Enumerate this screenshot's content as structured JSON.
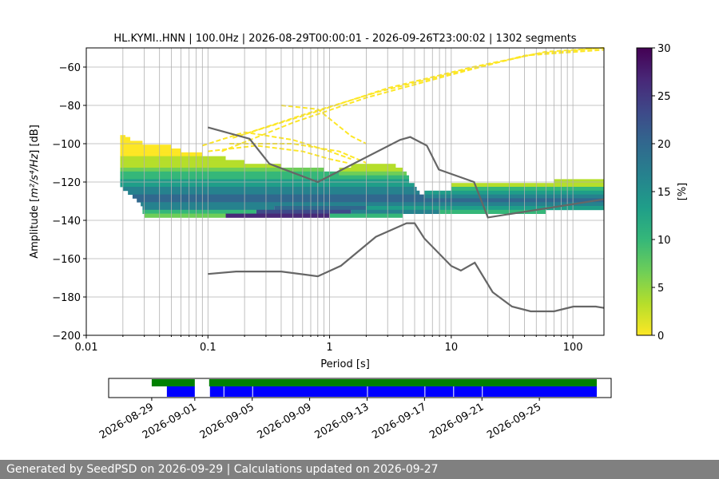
{
  "chart_data": [
    {
      "type": "heatmap",
      "title": "HL.KYMI..HNN | 100.0Hz | 2026-08-29T00:00:01 - 2026-09-26T23:00:02 | 1302 segments",
      "xlabel": "Period [s]",
      "ylabel_prefix": "Amplitude [",
      "ylabel_math": "m²/s⁴/Hz",
      "ylabel_suffix": "] [dB]",
      "x_scale": "log",
      "xlim": [
        0.01,
        180
      ],
      "ylim": [
        -200,
        -50
      ],
      "x_ticks": [
        {
          "value": 0.01,
          "label": "0.01"
        },
        {
          "value": 0.1,
          "label": "0.1"
        },
        {
          "value": 1,
          "label": "1"
        },
        {
          "value": 10,
          "label": "10"
        },
        {
          "value": 100,
          "label": "100"
        }
      ],
      "y_ticks": [
        {
          "value": -60,
          "label": "−60"
        },
        {
          "value": -80,
          "label": "−80"
        },
        {
          "value": -100,
          "label": "−100"
        },
        {
          "value": -120,
          "label": "−120"
        },
        {
          "value": -140,
          "label": "−140"
        },
        {
          "value": -160,
          "label": "−160"
        },
        {
          "value": -180,
          "label": "−180"
        },
        {
          "value": -200,
          "label": "−200"
        }
      ],
      "grid": true,
      "colorbar": {
        "label": "[%]",
        "range": [
          0,
          30
        ],
        "ticks": [
          {
            "value": 0,
            "label": "0"
          },
          {
            "value": 5,
            "label": "5"
          },
          {
            "value": 10,
            "label": "10"
          },
          {
            "value": 15,
            "label": "15"
          },
          {
            "value": 20,
            "label": "20"
          },
          {
            "value": 25,
            "label": "25"
          },
          {
            "value": 30,
            "label": "30"
          }
        ],
        "colormap": [
          "#fde725",
          "#b5de2b",
          "#6ece58",
          "#35b779",
          "#1f9e89",
          "#26828e",
          "#31688e",
          "#3e4989",
          "#482878",
          "#440154"
        ]
      },
      "noise_models": [
        {
          "points": [
            [
              0.1,
              -91.5
            ],
            [
              0.22,
              -97.4
            ],
            [
              0.32,
              -110.5
            ],
            [
              0.8,
              -120
            ],
            [
              3.8,
              -98
            ],
            [
              4.6,
              -96.5
            ],
            [
              6.3,
              -101
            ],
            [
              7.9,
              -113.5
            ],
            [
              15.4,
              -120
            ],
            [
              20,
              -138.5
            ],
            [
              180,
              -129
            ]
          ],
          "color": "#666666"
        },
        {
          "points": [
            [
              0.1,
              -168
            ],
            [
              0.17,
              -166.7
            ],
            [
              0.4,
              -166.7
            ],
            [
              0.8,
              -169.2
            ],
            [
              1.24,
              -163.7
            ],
            [
              2.4,
              -148.6
            ],
            [
              4.3,
              -141.5
            ],
            [
              5.0,
              -141.5
            ],
            [
              6.0,
              -149.4
            ],
            [
              10,
              -163.8
            ],
            [
              12,
              -166.2
            ],
            [
              15.6,
              -162.1
            ],
            [
              21.9,
              -177.5
            ],
            [
              31.6,
              -185
            ],
            [
              45,
              -187.5
            ],
            [
              70,
              -187.5
            ],
            [
              101,
              -185
            ],
            [
              154,
              -185
            ],
            [
              180,
              -185.7
            ]
          ],
          "color": "#666666"
        }
      ],
      "psd_density": {
        "rows": [
          {
            "y": -96.5,
            "cells": [
              [
                0.019,
                0.021,
                0
              ]
            ]
          },
          {
            "y": -97.5,
            "cells": [
              [
                0.019,
                0.023,
                0
              ]
            ]
          },
          {
            "y": -99.5,
            "cells": [
              [
                0.019,
                0.029,
                0
              ]
            ]
          },
          {
            "y": -101.5,
            "cells": [
              [
                0.019,
                0.05,
                0
              ]
            ]
          },
          {
            "y": -103.5,
            "cells": [
              [
                0.019,
                0.06,
                0
              ]
            ]
          },
          {
            "y": -105.5,
            "cells": [
              [
                0.019,
                0.09,
                0
              ]
            ]
          },
          {
            "y": -107.5,
            "cells": [
              [
                0.019,
                0.14,
                1
              ]
            ]
          },
          {
            "y": -109.5,
            "cells": [
              [
                0.019,
                0.2,
                1
              ]
            ]
          },
          {
            "y": -111.5,
            "cells": [
              [
                0.019,
                0.4,
                1
              ],
              [
                1.5,
                3.5,
                1
              ]
            ]
          },
          {
            "y": -113.5,
            "cells": [
              [
                0.019,
                0.9,
                2
              ],
              [
                1.2,
                4.0,
                1
              ]
            ]
          },
          {
            "y": -115.5,
            "cells": [
              [
                0.019,
                1.2,
                3
              ],
              [
                1.2,
                4.3,
                2
              ]
            ]
          },
          {
            "y": -117.5,
            "cells": [
              [
                0.019,
                4.5,
                3
              ]
            ]
          },
          {
            "y": -119.5,
            "cells": [
              [
                0.019,
                4.5,
                4
              ],
              [
                70,
                180,
                1
              ]
            ]
          },
          {
            "y": -121.5,
            "cells": [
              [
                0.019,
                5.0,
                4
              ],
              [
                10,
                180,
                1
              ]
            ]
          },
          {
            "y": -123.5,
            "cells": [
              [
                0.02,
                5.2,
                5
              ],
              [
                10,
                180,
                3
              ]
            ]
          },
          {
            "y": -125.5,
            "cells": [
              [
                0.022,
                5.5,
                5
              ],
              [
                6,
                180,
                4
              ]
            ]
          },
          {
            "y": -127.5,
            "cells": [
              [
                0.024,
                6.0,
                6
              ],
              [
                6,
                180,
                5
              ]
            ]
          },
          {
            "y": -129.5,
            "cells": [
              [
                0.026,
                180,
                6
              ]
            ]
          },
          {
            "y": -131.5,
            "cells": [
              [
                0.028,
                180,
                5
              ]
            ]
          },
          {
            "y": -133.5,
            "cells": [
              [
                0.029,
                0.35,
                5
              ],
              [
                0.35,
                2.0,
                6
              ],
              [
                2.0,
                180,
                4
              ]
            ]
          },
          {
            "y": -135.5,
            "cells": [
              [
                0.029,
                0.25,
                3
              ],
              [
                0.25,
                1.5,
                7
              ],
              [
                1.5,
                8.0,
                5
              ],
              [
                8.0,
                60,
                3
              ]
            ]
          },
          {
            "y": -137.5,
            "cells": [
              [
                0.03,
                0.14,
                2
              ],
              [
                0.14,
                1.0,
                8
              ],
              [
                1.0,
                4.0,
                3
              ]
            ]
          }
        ]
      },
      "spurious_lines": [
        {
          "points": [
            [
              0.13,
              -104
            ],
            [
              0.5,
              -89
            ],
            [
              2.0,
              -76
            ],
            [
              10,
              -64
            ],
            [
              40,
              -54
            ],
            [
              180,
              -51
            ]
          ],
          "color": "#fde725"
        },
        {
          "points": [
            [
              0.16,
              -97
            ],
            [
              0.6,
              -85
            ],
            [
              2.5,
              -73
            ],
            [
              12,
              -62
            ],
            [
              50,
              -53
            ],
            [
              180,
              -50
            ]
          ],
          "color": "#fde725"
        },
        {
          "points": [
            [
              0.2,
              -95
            ],
            [
              0.8,
              -83
            ],
            [
              3.0,
              -71
            ],
            [
              15,
              -60
            ],
            [
              60,
              -52
            ],
            [
              180,
              -50
            ]
          ],
          "color": "#fde725"
        },
        {
          "points": [
            [
              0.1,
              -104
            ],
            [
              0.25,
              -101
            ],
            [
              0.6,
              -104
            ],
            [
              1.0,
              -108
            ],
            [
              1.4,
              -110
            ]
          ],
          "color": "#fde725"
        },
        {
          "points": [
            [
              0.09,
              -101
            ],
            [
              0.2,
              -94
            ],
            [
              0.5,
              -98
            ],
            [
              1.0,
              -104
            ],
            [
              1.5,
              -108
            ]
          ],
          "color": "#fde725"
        },
        {
          "points": [
            [
              0.4,
              -80
            ],
            [
              0.8,
              -82
            ],
            [
              1.5,
              -96
            ],
            [
              2.0,
              -100
            ]
          ],
          "color": "#fde725"
        },
        {
          "points": [
            [
              0.15,
              -100
            ],
            [
              0.5,
              -100
            ],
            [
              1.2,
              -104
            ],
            [
              2.0,
              -110
            ]
          ],
          "color": "#fde725"
        }
      ]
    },
    {
      "type": "timeline",
      "xlim": [
        "2026-08-26",
        "2026-09-30"
      ],
      "x_ticks": [
        {
          "value": "2026-08-29",
          "label": "2026-08-29"
        },
        {
          "value": "2026-09-01",
          "label": "2026-09-01"
        },
        {
          "value": "2026-09-05",
          "label": "2026-09-05"
        },
        {
          "value": "2026-09-09",
          "label": "2026-09-09"
        },
        {
          "value": "2026-09-13",
          "label": "2026-09-13"
        },
        {
          "value": "2026-09-17",
          "label": "2026-09-17"
        },
        {
          "value": "2026-09-21",
          "label": "2026-09-21"
        },
        {
          "value": "2026-09-25",
          "label": "2026-09-25"
        }
      ],
      "data_coverage": {
        "color": "#008000",
        "segments": [
          [
            "2026-08-29",
            "2026-09-01"
          ],
          [
            "2026-09-02",
            "2026-09-29"
          ]
        ]
      },
      "psd_coverage": {
        "color": "#0000ff",
        "segments": [
          [
            "2026-08-30",
            "2026-09-01"
          ],
          [
            "2026-09-02",
            "2026-09-03"
          ],
          [
            "2026-09-03",
            "2026-09-05"
          ],
          [
            "2026-09-05",
            "2026-09-13"
          ],
          [
            "2026-09-13",
            "2026-09-17"
          ],
          [
            "2026-09-17",
            "2026-09-19"
          ],
          [
            "2026-09-19",
            "2026-09-21"
          ],
          [
            "2026-09-21",
            "2026-09-29"
          ]
        ]
      }
    }
  ],
  "footer": {
    "text": "Generated by SeedPSD on 2026-09-29 | Calculations updated on 2026-09-27"
  }
}
